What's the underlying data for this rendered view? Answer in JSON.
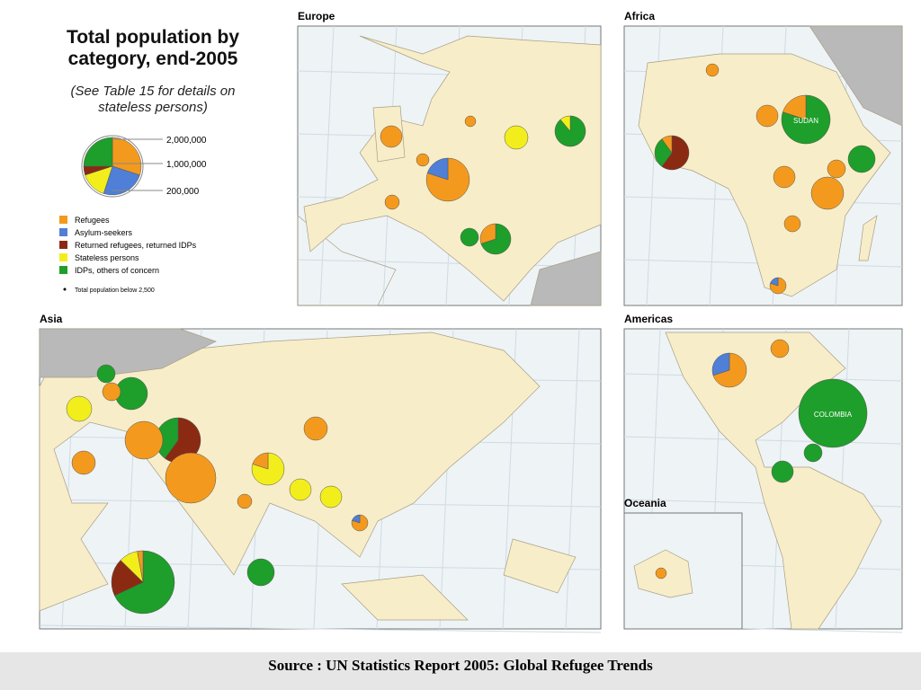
{
  "header": {
    "title": "Total population by category, end-2005",
    "subtitle": "(See Table 15 for details on stateless persons)"
  },
  "legend": {
    "scale": [
      "2,000,000",
      "1,000,000",
      "200,000"
    ],
    "items": [
      {
        "label": "Refugees",
        "color": "#f39a1e"
      },
      {
        "label": "Asylum-seekers",
        "color": "#4f7fd6"
      },
      {
        "label": "Returned refugees, returned IDPs",
        "color": "#8b2a12"
      },
      {
        "label": "Stateless persons",
        "color": "#f2ee1c"
      },
      {
        "label": "IDPs, others of concern",
        "color": "#1e9e2a"
      }
    ],
    "small_note": "Total population below 2,500"
  },
  "panels": {
    "europe": "Europe",
    "africa": "Africa",
    "asia": "Asia",
    "americas": "Americas",
    "oceania": "Oceania"
  },
  "map_labels": {
    "colombia": "COLOMBIA",
    "sudan": "SUDAN"
  },
  "footer": {
    "source": "Source : UN Statistics Report 2005: Global Refugee Trends"
  }
}
